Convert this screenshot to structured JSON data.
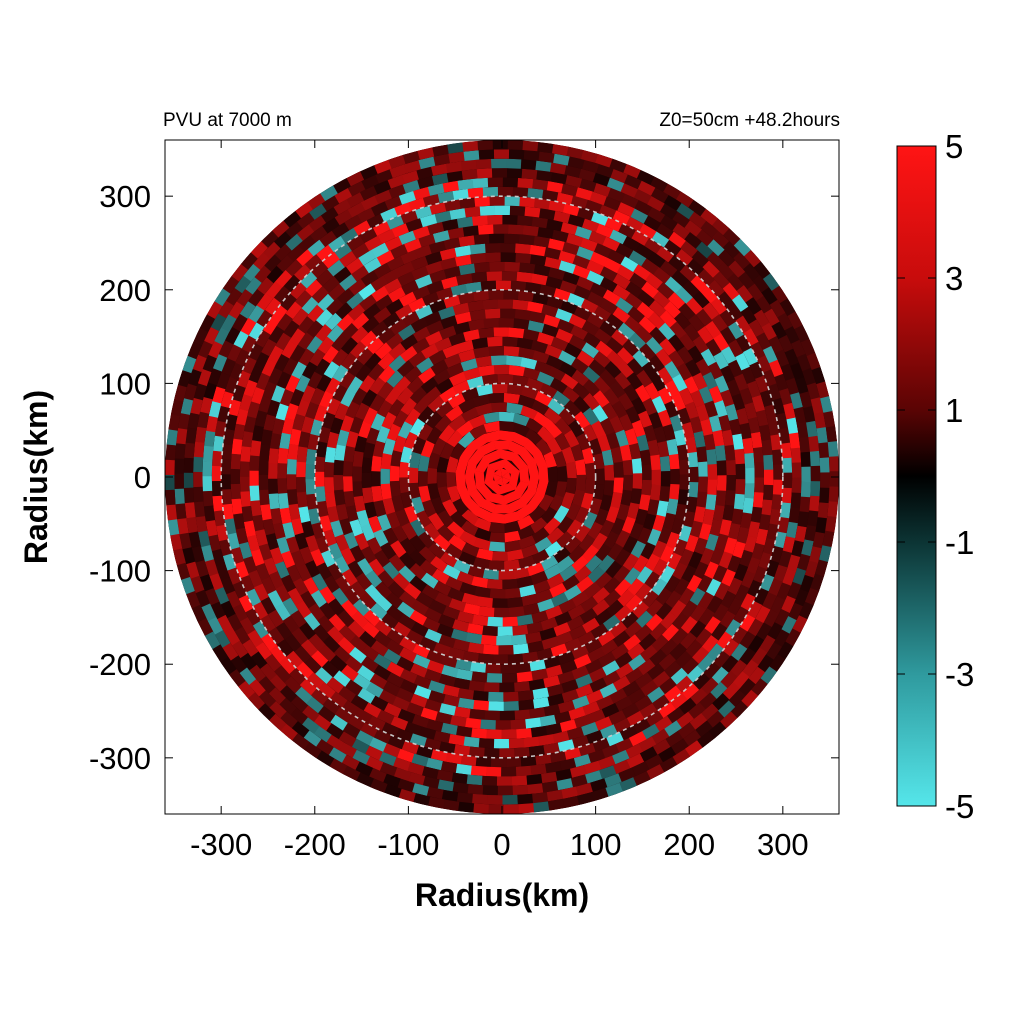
{
  "chart_data": {
    "type": "heatmap",
    "title_left": "PVU at  7000 m",
    "title_right": "Z0=50cm  +48.2hours",
    "xlabel": "Radius(km)",
    "ylabel": "Radius(km)",
    "xlim": [
      -360,
      360
    ],
    "ylim": [
      -360,
      360
    ],
    "x_ticks": [
      -300,
      -200,
      -100,
      0,
      100,
      200,
      300
    ],
    "y_ticks": [
      300,
      200,
      100,
      0,
      -100,
      -200,
      -300
    ],
    "domain_radius_km": 360,
    "reference_circles_km": [
      100,
      200,
      300
    ],
    "reference_circle_style": "dashed-light-grey",
    "core_high_value_radius_km": 50,
    "colorbar": {
      "min": -5,
      "max": 5,
      "ticks": [
        5,
        3,
        1,
        -1,
        -3,
        -5
      ],
      "colors": {
        "low": "#55e6ea",
        "mid": "#000000",
        "high": "#ff1414"
      }
    }
  }
}
